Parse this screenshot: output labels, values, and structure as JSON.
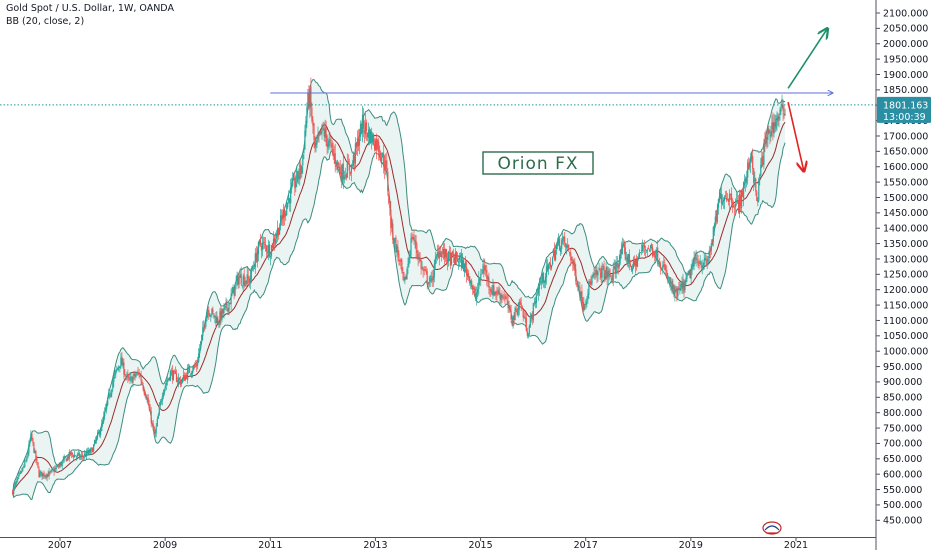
{
  "header": {
    "title": "Gold Spot / U.S. Dollar, 1W, OANDA",
    "indicator": "BB (20, close, 2)"
  },
  "watermark": "Orion FX",
  "price_tag": {
    "price": "1801.163",
    "countdown": "13:00:39"
  },
  "colors": {
    "up": "#26a69a",
    "down": "#ef5350",
    "band": "#3c8c80",
    "band_fill": "#e3f2ef",
    "basis": "#9a2d2d",
    "resistance": "#5b6ee1",
    "up_arrow": "#1f8f6a",
    "down_arrow": "#e02424",
    "price_line": "#2196a6"
  },
  "icons": {
    "logo": "tradingview-badge-icon",
    "up_arrow": "projection-up-arrow-icon",
    "down_arrow": "projection-down-arrow-icon"
  },
  "chart_data": {
    "type": "candlestick",
    "title": "Gold Spot / U.S. Dollar, 1W, OANDA",
    "y_axis": {
      "ylim": [
        420,
        2115
      ],
      "ticks": [
        "2100.000",
        "2050.000",
        "2000.000",
        "1950.000",
        "1900.000",
        "1850.000",
        "1800.000",
        "1750.000",
        "1700.000",
        "1650.000",
        "1600.000",
        "1550.000",
        "1500.000",
        "1450.000",
        "1400.000",
        "1350.000",
        "1300.000",
        "1250.000",
        "1200.000",
        "1150.000",
        "1100.000",
        "1050.000",
        "1000.000",
        "950.000",
        "900.000",
        "850.000",
        "800.000",
        "750.000",
        "700.000",
        "650.000",
        "600.000",
        "550.000",
        "500.000",
        "450.000"
      ],
      "tick_values": [
        2100,
        2050,
        2000,
        1950,
        1900,
        1850,
        1800,
        1750,
        1700,
        1650,
        1600,
        1550,
        1500,
        1450,
        1400,
        1350,
        1300,
        1250,
        1200,
        1150,
        1100,
        1050,
        1000,
        950,
        900,
        850,
        800,
        750,
        700,
        650,
        600,
        550,
        500,
        450
      ]
    },
    "x_axis": {
      "xlim": [
        2006.1,
        2022.5
      ],
      "ticks": [
        "2007",
        "2009",
        "2011",
        "2013",
        "2015",
        "2017",
        "2019",
        "2021"
      ],
      "tick_values": [
        2007,
        2009,
        2011,
        2013,
        2015,
        2017,
        2019,
        2021
      ]
    },
    "close_path": [
      [
        2006.1,
        545
      ],
      [
        2006.35,
        640
      ],
      [
        2006.45,
        725
      ],
      [
        2006.6,
        600
      ],
      [
        2006.8,
        600
      ],
      [
        2007.0,
        630
      ],
      [
        2007.2,
        665
      ],
      [
        2007.4,
        655
      ],
      [
        2007.6,
        675
      ],
      [
        2007.8,
        760
      ],
      [
        2008.0,
        900
      ],
      [
        2008.15,
        970
      ],
      [
        2008.3,
        900
      ],
      [
        2008.5,
        930
      ],
      [
        2008.65,
        850
      ],
      [
        2008.8,
        720
      ],
      [
        2008.95,
        870
      ],
      [
        2009.1,
        930
      ],
      [
        2009.3,
        900
      ],
      [
        2009.45,
        935
      ],
      [
        2009.6,
        955
      ],
      [
        2009.8,
        1140
      ],
      [
        2010.0,
        1100
      ],
      [
        2010.2,
        1150
      ],
      [
        2010.4,
        1240
      ],
      [
        2010.6,
        1230
      ],
      [
        2010.8,
        1350
      ],
      [
        2011.0,
        1330
      ],
      [
        2011.2,
        1420
      ],
      [
        2011.4,
        1520
      ],
      [
        2011.6,
        1600
      ],
      [
        2011.7,
        1800
      ],
      [
        2011.75,
        1830
      ],
      [
        2011.85,
        1650
      ],
      [
        2012.0,
        1720
      ],
      [
        2012.15,
        1660
      ],
      [
        2012.35,
        1580
      ],
      [
        2012.55,
        1600
      ],
      [
        2012.75,
        1740
      ],
      [
        2012.9,
        1700
      ],
      [
        2013.05,
        1670
      ],
      [
        2013.2,
        1600
      ],
      [
        2013.3,
        1400
      ],
      [
        2013.45,
        1300
      ],
      [
        2013.55,
        1210
      ],
      [
        2013.7,
        1380
      ],
      [
        2013.9,
        1260
      ],
      [
        2014.05,
        1220
      ],
      [
        2014.2,
        1330
      ],
      [
        2014.4,
        1300
      ],
      [
        2014.6,
        1300
      ],
      [
        2014.8,
        1240
      ],
      [
        2014.9,
        1170
      ],
      [
        2015.05,
        1280
      ],
      [
        2015.2,
        1200
      ],
      [
        2015.45,
        1180
      ],
      [
        2015.6,
        1100
      ],
      [
        2015.75,
        1160
      ],
      [
        2015.9,
        1060
      ],
      [
        2016.1,
        1210
      ],
      [
        2016.3,
        1270
      ],
      [
        2016.45,
        1340
      ],
      [
        2016.55,
        1360
      ],
      [
        2016.7,
        1320
      ],
      [
        2016.85,
        1220
      ],
      [
        2016.95,
        1150
      ],
      [
        2017.1,
        1230
      ],
      [
        2017.3,
        1260
      ],
      [
        2017.5,
        1240
      ],
      [
        2017.7,
        1330
      ],
      [
        2017.9,
        1270
      ],
      [
        2018.1,
        1340
      ],
      [
        2018.3,
        1330
      ],
      [
        2018.45,
        1280
      ],
      [
        2018.6,
        1220
      ],
      [
        2018.7,
        1180
      ],
      [
        2018.9,
        1220
      ],
      [
        2019.1,
        1300
      ],
      [
        2019.3,
        1280
      ],
      [
        2019.45,
        1400
      ],
      [
        2019.55,
        1500
      ],
      [
        2019.7,
        1510
      ],
      [
        2019.9,
        1470
      ],
      [
        2020.05,
        1560
      ],
      [
        2020.15,
        1650
      ],
      [
        2020.25,
        1480
      ],
      [
        2020.35,
        1620
      ],
      [
        2020.45,
        1700
      ],
      [
        2020.55,
        1730
      ],
      [
        2020.65,
        1760
      ],
      [
        2020.75,
        1780
      ],
      [
        2020.8,
        1800
      ]
    ],
    "annotations": {
      "resistance": {
        "price": 1840,
        "from_year": 2011.0,
        "to_year": 2021.7
      },
      "projection_up": {
        "from": [
          2020.85,
          1855
        ],
        "to": [
          2021.6,
          2050
        ]
      },
      "projection_down": {
        "from": [
          2020.85,
          1810
        ],
        "to": [
          2021.15,
          1585
        ]
      },
      "last_price": 1801.163
    }
  }
}
